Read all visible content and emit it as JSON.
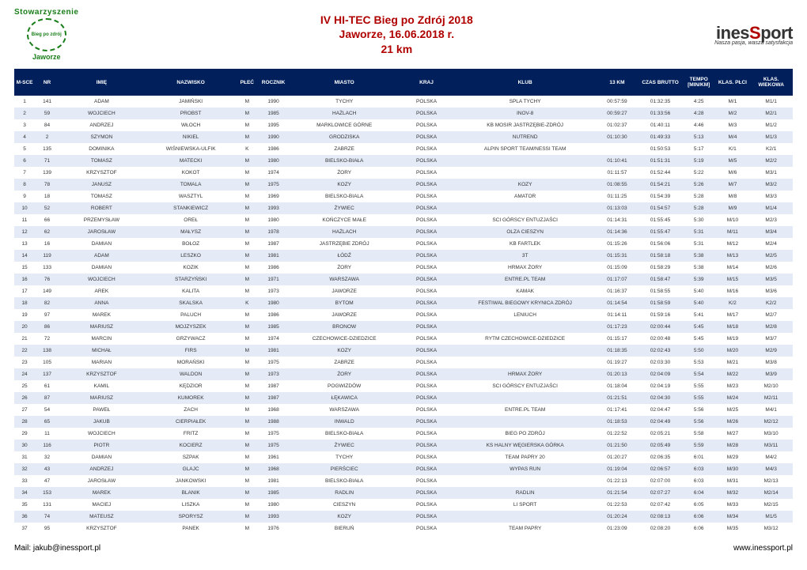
{
  "header": {
    "association_label": "Stowarzyszenie",
    "circle_text": "Bieg po zdrój",
    "town": "Jaworze",
    "title_line1": "IV HI-TEC Bieg po Zdrój 2018",
    "title_line2": "Jaworze, 16.06.2018 r.",
    "title_line3": "21 km",
    "brand_pre": "ines",
    "brand_red": "S",
    "brand_post": "port",
    "tagline": "Nasza pasja, wasza satysfakcja"
  },
  "colors": {
    "header_bg": "#001f5b",
    "header_fg": "#ffffff",
    "row_even": "#e4ebf7",
    "row_odd": "#ffffff",
    "title_color": "#b00000",
    "assoc_color": "#1a7e1a"
  },
  "columns": [
    "M-SCE",
    "NR",
    "IMIĘ",
    "NAZWISKO",
    "PŁEĆ",
    "ROCZNIK",
    "MIASTO",
    "KRAJ",
    "KLUB",
    "13 KM",
    "CZAS BRUTTO",
    "TEMPO [MIN/KM]",
    "KLAS. PŁCI",
    "KLAS. WIEKOWA"
  ],
  "rows": [
    [
      "1",
      "141",
      "ADAM",
      "JAMIŃSKI",
      "M",
      "1990",
      "TYCHY",
      "POLSKA",
      "SPLA TYCHY",
      "00:57:59",
      "01:32:35",
      "4:25",
      "M/1",
      "M1/1"
    ],
    [
      "2",
      "59",
      "WOJCIECH",
      "PROBST",
      "M",
      "1985",
      "HAŻLACH",
      "POLSKA",
      "INOV-8",
      "00:59:27",
      "01:33:56",
      "4:28",
      "M/2",
      "M2/1"
    ],
    [
      "3",
      "84",
      "ANDRZEJ",
      "WŁOCH",
      "M",
      "1995",
      "MARKLOWICE GÓRNE",
      "POLSKA",
      "KB MOSIR JASTRZĘBIE-ZDRÓJ",
      "01:02:37",
      "01:40:11",
      "4:46",
      "M/3",
      "M1/2"
    ],
    [
      "4",
      "2",
      "SZYMON",
      "NIKIEL",
      "M",
      "1990",
      "GRODZISKA",
      "POLSKA",
      "NUTREND",
      "01:10:30",
      "01:49:33",
      "5:13",
      "M/4",
      "M1/3"
    ],
    [
      "5",
      "135",
      "DOMINIKA",
      "WIŚNIEWSKA-ULFIK",
      "K",
      "1986",
      "ZABRZE",
      "POLSKA",
      "ALPIN SPORT TEAM/NESSI TEAM",
      "",
      "01:50:53",
      "5:17",
      "K/1",
      "K2/1"
    ],
    [
      "6",
      "71",
      "TOMASZ",
      "MATECKI",
      "M",
      "1980",
      "BIELSKO-BIAŁA",
      "POLSKA",
      "",
      "01:10:41",
      "01:51:31",
      "5:19",
      "M/5",
      "M2/2"
    ],
    [
      "7",
      "139",
      "KRZYSZTOF",
      "KOKOT",
      "M",
      "1974",
      "ŻORY",
      "POLSKA",
      "",
      "01:11:57",
      "01:52:44",
      "5:22",
      "M/6",
      "M3/1"
    ],
    [
      "8",
      "78",
      "JANUSZ",
      "TOMALA",
      "M",
      "1975",
      "KOZY",
      "POLSKA",
      "KOZY",
      "01:08:55",
      "01:54:21",
      "5:26",
      "M/7",
      "M3/2"
    ],
    [
      "9",
      "18",
      "TOMASZ",
      "WASZTYL",
      "M",
      "1969",
      "BIELSKO-BIALA",
      "POLSKA",
      "AMATOR",
      "01:11:25",
      "01:54:39",
      "5:28",
      "M/8",
      "M3/3"
    ],
    [
      "10",
      "52",
      "ROBERT",
      "STANKIEWICZ",
      "M",
      "1993",
      "ŻYWIEC",
      "POLSKA",
      "",
      "01:13:03",
      "01:54:57",
      "5:28",
      "M/9",
      "M1/4"
    ],
    [
      "11",
      "66",
      "PRZEMYSŁAW",
      "OREŁ",
      "M",
      "1980",
      "KOŃCZYCE MAŁE",
      "POLSKA",
      "SCI GÓRSCY ENTUZJAŚCI",
      "01:14:31",
      "01:55:45",
      "5:30",
      "M/10",
      "M2/3"
    ],
    [
      "12",
      "62",
      "JAROSŁAW",
      "MAŁYSZ",
      "M",
      "1978",
      "HAŻLACH",
      "POLSKA",
      "OLZA CIESZYN",
      "01:14:36",
      "01:55:47",
      "5:31",
      "M/11",
      "M3/4"
    ],
    [
      "13",
      "16",
      "DAMIAN",
      "BOŁOZ",
      "M",
      "1987",
      "JASTRZĘBIE ZDRÓJ",
      "POLSKA",
      "KB FARTLEK",
      "01:15:26",
      "01:56:06",
      "5:31",
      "M/12",
      "M2/4"
    ],
    [
      "14",
      "119",
      "ADAM",
      "LESZKO",
      "M",
      "1981",
      "ŁÓDŹ",
      "POLSKA",
      "3T",
      "01:15:31",
      "01:58:18",
      "5:38",
      "M/13",
      "M2/5"
    ],
    [
      "15",
      "133",
      "DAMIAN",
      "KOZIK",
      "M",
      "1986",
      "ŻORY",
      "POLSKA",
      "HRMAX ŻORY",
      "01:15:09",
      "01:58:29",
      "5:38",
      "M/14",
      "M2/6"
    ],
    [
      "16",
      "76",
      "WOJCIECH",
      "STARZYŃSKI",
      "M",
      "1971",
      "WARSZAWA",
      "POLSKA",
      "ENTRE.PL TEAM",
      "01:17:07",
      "01:58:47",
      "5:39",
      "M/15",
      "M3/5"
    ],
    [
      "17",
      "149",
      "AREK",
      "KALITA",
      "M",
      "1973",
      "JAWORZE",
      "POLSKA",
      "KAMAK",
      "01:16:37",
      "01:58:55",
      "5:40",
      "M/16",
      "M3/6"
    ],
    [
      "18",
      "82",
      "ANNA",
      "SKALSKA",
      "K",
      "1980",
      "BYTOM",
      "POLSKA",
      "FESTIWAL BIEGOWY KRYNICA ZDRÓJ",
      "01:14:54",
      "01:58:59",
      "5:40",
      "K/2",
      "K2/2"
    ],
    [
      "19",
      "97",
      "MAREK",
      "PALUCH",
      "M",
      "1986",
      "JAWORZE",
      "POLSKA",
      "LENIUCH",
      "01:14:11",
      "01:59:16",
      "5:41",
      "M/17",
      "M2/7"
    ],
    [
      "20",
      "86",
      "MARIUSZ",
      "MOJZYSZEK",
      "M",
      "1985",
      "BRONOW",
      "POLSKA",
      "",
      "01:17:23",
      "02:00:44",
      "5:45",
      "M/18",
      "M2/8"
    ],
    [
      "21",
      "72",
      "MARCIN",
      "GRZYWACZ",
      "M",
      "1974",
      "CZECHOWICE-DZIEDZICE",
      "POLSKA",
      "RYTM CZECHOWICE-DZIEDZICE",
      "01:15:17",
      "02:00:48",
      "5:45",
      "M/19",
      "M3/7"
    ],
    [
      "22",
      "138",
      "MICHAŁ",
      "FIRS",
      "M",
      "1981",
      "KOZY",
      "POLSKA",
      "",
      "01:18:35",
      "02:02:43",
      "5:50",
      "M/20",
      "M2/9"
    ],
    [
      "23",
      "105",
      "MARIAN",
      "MORAŃSKI",
      "M",
      "1975",
      "ZABRZE",
      "POLSKA",
      "",
      "01:19:27",
      "02:03:30",
      "5:53",
      "M/21",
      "M3/8"
    ],
    [
      "24",
      "137",
      "KRZYSZTOF",
      "WALDON",
      "M",
      "1973",
      "ŻORY",
      "POLSKA",
      "HRMAX ŻORY",
      "01:20:13",
      "02:04:09",
      "5:54",
      "M/22",
      "M3/9"
    ],
    [
      "25",
      "61",
      "KAMIL",
      "KĘDZIOR",
      "M",
      "1987",
      "POGWIZDÓW",
      "POLSKA",
      "SCI GÓRSCY ENTUZJAŚCI",
      "01:18:04",
      "02:04:19",
      "5:55",
      "M/23",
      "M2/10"
    ],
    [
      "26",
      "87",
      "MARIUSZ",
      "KUMOREK",
      "M",
      "1987",
      "ŁĘKAWICA",
      "POLSKA",
      "",
      "01:21:51",
      "02:04:30",
      "5:55",
      "M/24",
      "M2/11"
    ],
    [
      "27",
      "54",
      "PAWEŁ",
      "ZACH",
      "M",
      "1968",
      "WARSZAWA",
      "POLSKA",
      "ENTRE.PL TEAM",
      "01:17:41",
      "02:04:47",
      "5:56",
      "M/25",
      "M4/1"
    ],
    [
      "28",
      "65",
      "JAKUB",
      "CIERPIAŁEK",
      "M",
      "1988",
      "INWALD",
      "POLSKA",
      "",
      "01:18:53",
      "02:04:49",
      "5:56",
      "M/26",
      "M2/12"
    ],
    [
      "29",
      "11",
      "WOJCIECH",
      "FRITZ",
      "M",
      "1975",
      "BIELSKO-BIAŁA",
      "POLSKA",
      "BIEG PO ZDRÓJ",
      "01:22:52",
      "02:05:21",
      "5:58",
      "M/27",
      "M3/10"
    ],
    [
      "30",
      "116",
      "PIOTR",
      "KOCIERZ",
      "M",
      "1975",
      "ŻYWIEC",
      "POLSKA",
      "KS HALNY WĘGIERSKA GÓRKA",
      "01:21:50",
      "02:05:49",
      "5:59",
      "M/28",
      "M3/11"
    ],
    [
      "31",
      "32",
      "DAMIAN",
      "SZPAK",
      "M",
      "1961",
      "TYCHY",
      "POLSKA",
      "TEAM PAPRY 20",
      "01:20:27",
      "02:06:35",
      "6:01",
      "M/29",
      "M4/2"
    ],
    [
      "32",
      "43",
      "ANDRZEJ",
      "GLAJC",
      "M",
      "1968",
      "PIERŚCIEC",
      "POLSKA",
      "WYPAS RUN",
      "01:19:04",
      "02:06:57",
      "6:03",
      "M/30",
      "M4/3"
    ],
    [
      "33",
      "47",
      "JAROSŁAW",
      "JANKOWSKI",
      "M",
      "1981",
      "BIELSKO-BIAŁA",
      "POLSKA",
      "",
      "01:22:13",
      "02:07:00",
      "6:03",
      "M/31",
      "M2/13"
    ],
    [
      "34",
      "153",
      "MAREK",
      "BLANIK",
      "M",
      "1985",
      "RADLIN",
      "POLSKA",
      "RADLIN",
      "01:21:54",
      "02:07:27",
      "6:04",
      "M/32",
      "M2/14"
    ],
    [
      "35",
      "131",
      "MACIEJ",
      "LISZKA",
      "M",
      "1980",
      "CIESZYN",
      "POLSKA",
      "LI SPORT",
      "01:22:53",
      "02:07:42",
      "6:05",
      "M/33",
      "M2/15"
    ],
    [
      "36",
      "74",
      "MATEUSZ",
      "SPORYSZ",
      "M",
      "1993",
      "KOZY",
      "POLSKA",
      "",
      "01:20:24",
      "02:08:13",
      "6:06",
      "M/34",
      "M1/5"
    ],
    [
      "37",
      "95",
      "KRZYSZTOF",
      "PANEK",
      "M",
      "1976",
      "BIERUŃ",
      "POLSKA",
      "TEAM PAPRY",
      "01:23:09",
      "02:08:20",
      "6:06",
      "M/35",
      "M3/12"
    ]
  ],
  "footer": {
    "mail_label": "Mail:",
    "mail": "jakub@inessport.pl",
    "site": "www.inessport.pl"
  }
}
